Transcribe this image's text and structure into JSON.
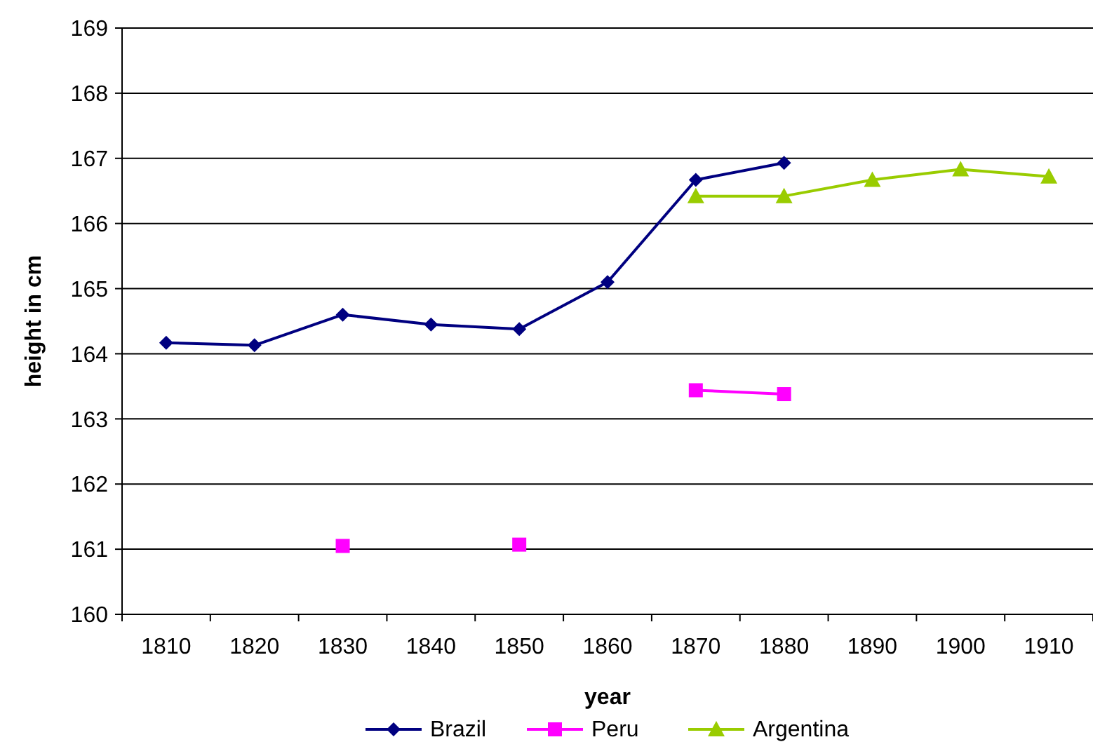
{
  "chart_data": {
    "type": "line",
    "xlabel": "year",
    "ylabel": "height in cm",
    "categories": [
      "1810",
      "1820",
      "1830",
      "1840",
      "1850",
      "1860",
      "1870",
      "1880",
      "1890",
      "1900",
      "1910"
    ],
    "series": [
      {
        "name": "Brazil",
        "color": "#000080",
        "marker": "diamond",
        "values": [
          164.17,
          164.13,
          164.6,
          164.45,
          164.38,
          165.1,
          166.67,
          166.93,
          null,
          null,
          null
        ]
      },
      {
        "name": "Peru",
        "color": "#ff00ff",
        "marker": "square",
        "values": [
          null,
          null,
          161.05,
          null,
          161.07,
          null,
          163.44,
          163.38,
          null,
          null,
          null
        ]
      },
      {
        "name": "Argentina",
        "color": "#99cc00",
        "marker": "triangle",
        "values": [
          null,
          null,
          null,
          null,
          null,
          null,
          166.42,
          166.42,
          166.67,
          166.83,
          166.72
        ]
      }
    ],
    "ylim": [
      160,
      169
    ],
    "yticks": [
      160,
      161,
      162,
      163,
      164,
      165,
      166,
      167,
      168,
      169
    ],
    "grid": "y",
    "legend": "bottom",
    "line_style": "solid"
  }
}
